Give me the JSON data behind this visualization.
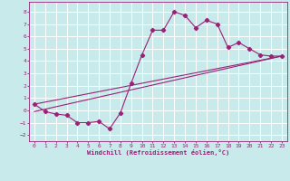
{
  "xlabel": "Windchill (Refroidissement éolien,°C)",
  "bg_color": "#c8eaea",
  "line_color": "#992277",
  "grid_color": "#ffffff",
  "xlim": [
    -0.5,
    23.5
  ],
  "ylim": [
    -2.5,
    8.8
  ],
  "xticks": [
    0,
    1,
    2,
    3,
    4,
    5,
    6,
    7,
    8,
    9,
    10,
    11,
    12,
    13,
    14,
    15,
    16,
    17,
    18,
    19,
    20,
    21,
    22,
    23
  ],
  "yticks": [
    -2,
    -1,
    0,
    1,
    2,
    3,
    4,
    5,
    6,
    7,
    8
  ],
  "x_data": [
    0,
    1,
    2,
    3,
    4,
    5,
    6,
    7,
    8,
    9,
    10,
    11,
    12,
    13,
    14,
    15,
    16,
    17,
    18,
    19,
    20,
    21,
    22,
    23
  ],
  "y_data": [
    0.5,
    -0.1,
    -0.3,
    -0.4,
    -1.0,
    -1.0,
    -0.9,
    -1.5,
    -0.2,
    2.2,
    4.5,
    6.5,
    6.5,
    8.0,
    7.7,
    6.7,
    7.3,
    7.0,
    5.1,
    5.5,
    5.0,
    4.5,
    4.4,
    4.4
  ],
  "trend1_x": [
    0,
    23
  ],
  "trend1_y": [
    0.5,
    4.4
  ],
  "trend2_x": [
    0,
    23
  ],
  "trend2_y": [
    -0.1,
    4.4
  ]
}
